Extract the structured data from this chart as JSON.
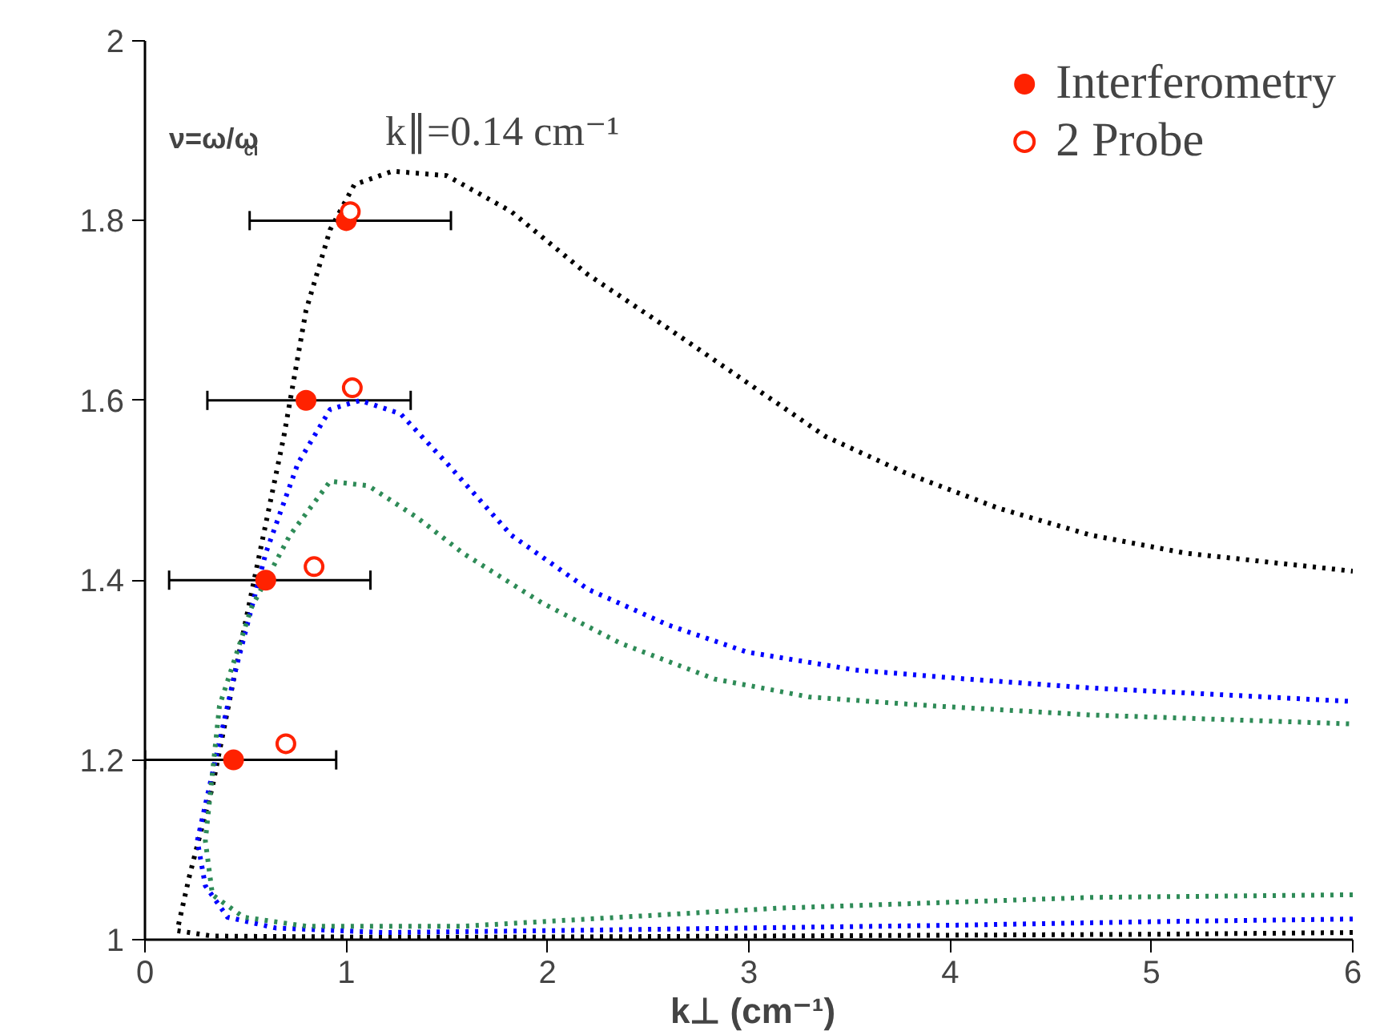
{
  "chart_data": {
    "type": "line",
    "xlabel": "k⊥ (cm⁻¹)",
    "annotations": [
      "ν=ω/ω$_{ci}$",
      "k∥=0.14 cm⁻¹"
    ],
    "xlim": [
      0,
      6
    ],
    "ylim": [
      1,
      2
    ],
    "xticks": [
      0,
      1,
      2,
      3,
      4,
      5,
      6
    ],
    "yticks": [
      1,
      1.2,
      1.4,
      1.6,
      1.8,
      2
    ],
    "grid": false,
    "legend": "top right",
    "line_style": "dotted",
    "series": [
      {
        "color": "#000000",
        "x": [
          6,
          5,
          4,
          3,
          2,
          1,
          0.335,
          0.16,
          0.22,
          0.335,
          0.45,
          0.57,
          0.69,
          0.8,
          0.92,
          1.04,
          1.23,
          1.5,
          1.82,
          2.2,
          2.6,
          2.99,
          3.38,
          3.77,
          4.24,
          4.7,
          5.17,
          6
        ],
        "values": [
          1.008,
          1.006,
          1.005,
          1.004,
          1.003,
          1.003,
          1.004,
          1.01,
          1.07,
          1.17,
          1.3,
          1.43,
          1.56,
          1.7,
          1.79,
          1.84,
          1.855,
          1.85,
          1.81,
          1.74,
          1.68,
          1.62,
          1.56,
          1.52,
          1.48,
          1.45,
          1.43,
          1.41
        ]
      },
      {
        "color": "#0000ff",
        "x": [
          6,
          5,
          4,
          3,
          2,
          1.19,
          0.65,
          0.41,
          0.3,
          0.26,
          0.45,
          0.6,
          0.76,
          0.92,
          1.07,
          1.27,
          1.5,
          1.82,
          2.2,
          2.6,
          2.99,
          3.53,
          4.08,
          4.7,
          6
        ],
        "values": [
          1.023,
          1.02,
          1.016,
          1.013,
          1.01,
          1.008,
          1.013,
          1.025,
          1.06,
          1.11,
          1.3,
          1.43,
          1.53,
          1.59,
          1.6,
          1.585,
          1.53,
          1.45,
          1.39,
          1.35,
          1.32,
          1.3,
          1.29,
          1.28,
          1.265
        ]
      },
      {
        "color": "#2e8b57",
        "x": [
          6,
          4.7,
          3.14,
          1.58,
          0.8,
          0.49,
          0.335,
          0.3,
          0.37,
          0.53,
          0.72,
          0.92,
          1.11,
          1.35,
          1.58,
          1.97,
          2.36,
          2.83,
          3.3,
          3.92,
          4.7,
          6
        ],
        "values": [
          1.05,
          1.047,
          1.035,
          1.015,
          1.015,
          1.025,
          1.05,
          1.11,
          1.26,
          1.37,
          1.45,
          1.51,
          1.505,
          1.47,
          1.43,
          1.375,
          1.33,
          1.29,
          1.27,
          1.26,
          1.25,
          1.24
        ]
      },
      {
        "type": "scatter",
        "name": "Interferometry",
        "color": "#ff2200",
        "marker": "circle",
        "x": [
          1.0,
          0.8,
          0.6,
          0.44
        ],
        "values": [
          1.8,
          1.6,
          1.4,
          1.2
        ],
        "xerrors": [
          [
            0.52,
            1.52
          ],
          [
            0.31,
            1.32
          ],
          [
            0.12,
            1.12
          ],
          [
            0,
            0.95
          ]
        ]
      },
      {
        "type": "scatter",
        "name": "2 Probe",
        "color": "#ff2200",
        "marker": "open_circle",
        "x": [
          1.02,
          1.03,
          0.84,
          0.7
        ],
        "values": [
          1.81,
          1.614,
          1.415,
          1.218
        ]
      }
    ]
  }
}
